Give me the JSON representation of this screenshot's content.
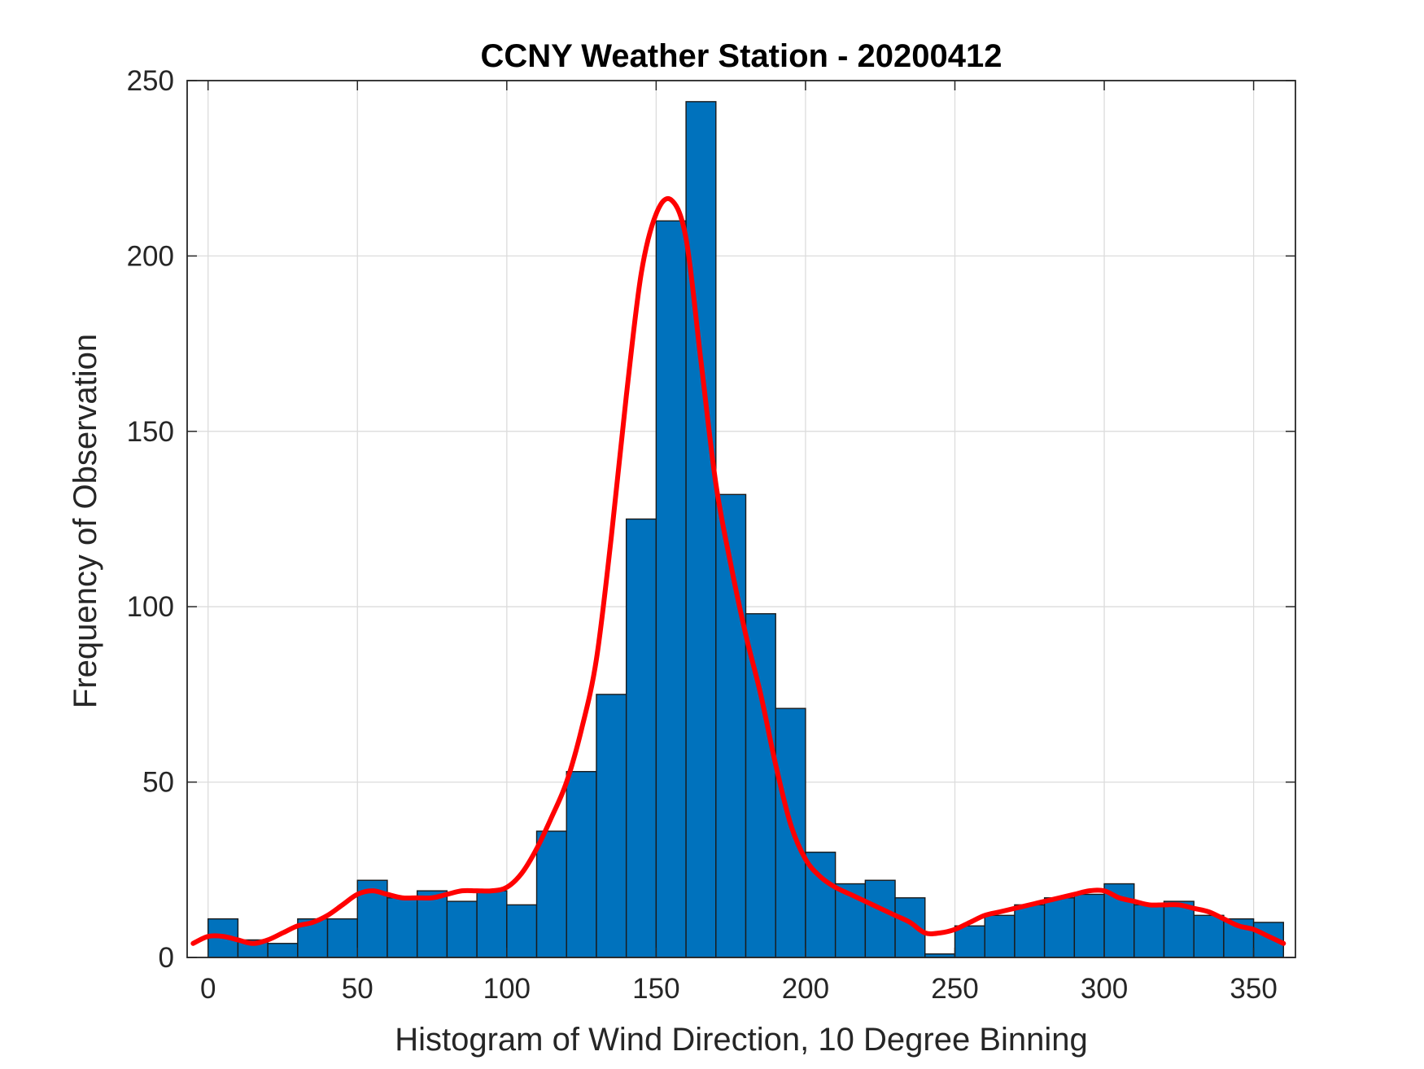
{
  "chart_data": {
    "type": "bar",
    "title": "CCNY Weather Station - 20200412",
    "xlabel": "Histogram of Wind Direction, 10 Degree Binning",
    "ylabel": "Frequency of Observation",
    "xlim": [
      -7,
      364
    ],
    "ylim": [
      0,
      250
    ],
    "grid": true,
    "xticks": [
      0,
      50,
      100,
      150,
      200,
      250,
      300,
      350
    ],
    "yticks": [
      0,
      50,
      100,
      150,
      200,
      250
    ],
    "bin_width": 10,
    "bins": [
      {
        "start": 0,
        "count": 11
      },
      {
        "start": 10,
        "count": 5
      },
      {
        "start": 20,
        "count": 4
      },
      {
        "start": 30,
        "count": 11
      },
      {
        "start": 40,
        "count": 11
      },
      {
        "start": 50,
        "count": 22
      },
      {
        "start": 60,
        "count": 17
      },
      {
        "start": 70,
        "count": 19
      },
      {
        "start": 80,
        "count": 16
      },
      {
        "start": 90,
        "count": 19
      },
      {
        "start": 100,
        "count": 15
      },
      {
        "start": 110,
        "count": 36
      },
      {
        "start": 120,
        "count": 53
      },
      {
        "start": 130,
        "count": 75
      },
      {
        "start": 140,
        "count": 125
      },
      {
        "start": 150,
        "count": 210
      },
      {
        "start": 160,
        "count": 244
      },
      {
        "start": 170,
        "count": 132
      },
      {
        "start": 180,
        "count": 98
      },
      {
        "start": 190,
        "count": 71
      },
      {
        "start": 200,
        "count": 30
      },
      {
        "start": 210,
        "count": 21
      },
      {
        "start": 220,
        "count": 22
      },
      {
        "start": 230,
        "count": 17
      },
      {
        "start": 240,
        "count": 1
      },
      {
        "start": 250,
        "count": 9
      },
      {
        "start": 260,
        "count": 12
      },
      {
        "start": 270,
        "count": 15
      },
      {
        "start": 280,
        "count": 17
      },
      {
        "start": 290,
        "count": 18
      },
      {
        "start": 300,
        "count": 21
      },
      {
        "start": 310,
        "count": 15
      },
      {
        "start": 320,
        "count": 16
      },
      {
        "start": 330,
        "count": 12
      },
      {
        "start": 340,
        "count": 11
      },
      {
        "start": 350,
        "count": 10
      }
    ],
    "fit_curve": {
      "name": "smoothed density fit",
      "x": [
        -5,
        0,
        5,
        10,
        15,
        20,
        25,
        30,
        35,
        40,
        45,
        50,
        55,
        60,
        65,
        70,
        75,
        80,
        85,
        90,
        95,
        100,
        105,
        110,
        115,
        120,
        125,
        130,
        135,
        140,
        145,
        150,
        155,
        160,
        165,
        170,
        175,
        180,
        185,
        190,
        195,
        200,
        205,
        210,
        215,
        220,
        225,
        230,
        235,
        240,
        245,
        250,
        255,
        260,
        265,
        270,
        275,
        280,
        285,
        290,
        295,
        300,
        305,
        310,
        315,
        320,
        325,
        330,
        335,
        340,
        345,
        350,
        355,
        360
      ],
      "y": [
        4,
        6,
        6,
        5,
        4,
        5,
        7,
        9,
        10,
        12,
        15,
        18,
        19,
        18,
        17,
        17,
        17,
        18,
        19,
        19,
        19,
        20,
        24,
        31,
        40,
        50,
        65,
        85,
        120,
        160,
        195,
        212,
        216,
        205,
        170,
        135,
        112,
        92,
        75,
        55,
        38,
        28,
        23,
        20,
        18,
        16,
        14,
        12,
        10,
        7,
        7,
        8,
        10,
        12,
        13,
        14,
        15,
        16,
        17,
        18,
        19,
        19,
        17,
        16,
        15,
        15,
        15,
        14,
        13,
        11,
        9,
        8,
        6,
        4
      ],
      "color": "#ff0000"
    },
    "bar_color": "#0072bd"
  }
}
